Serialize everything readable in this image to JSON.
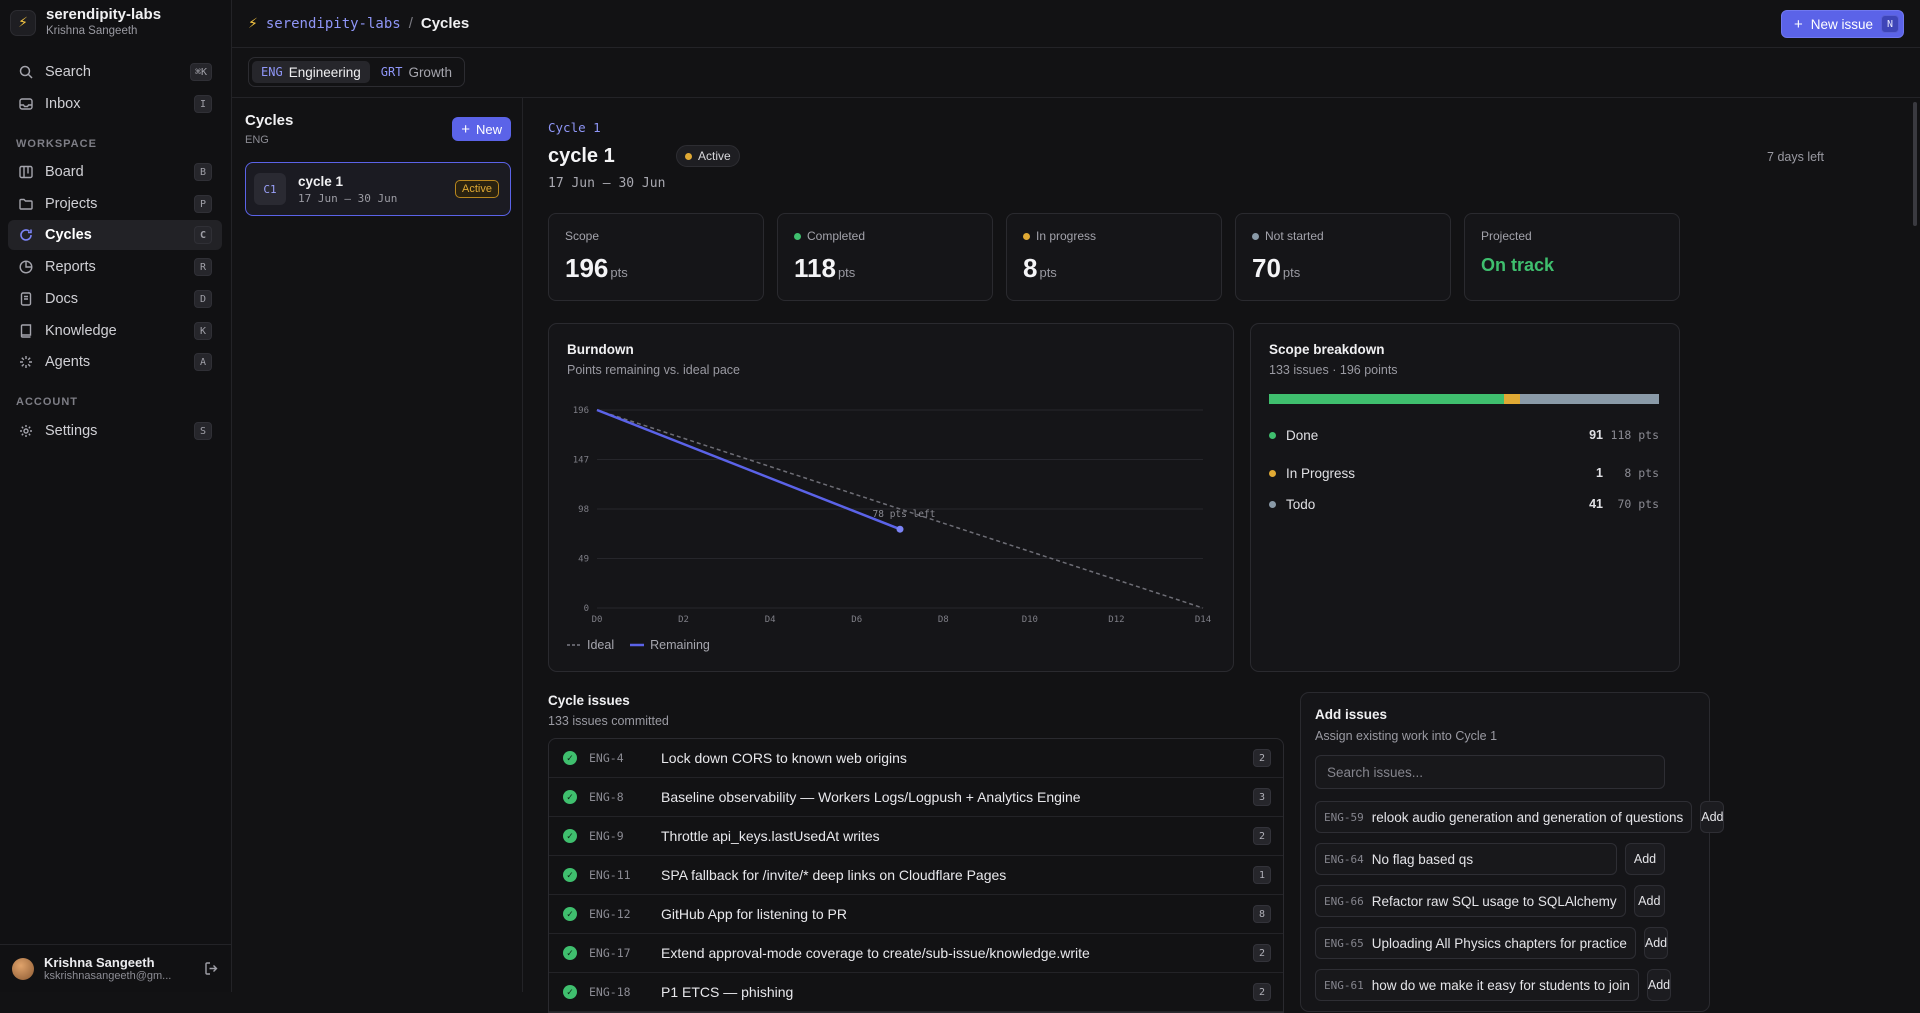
{
  "workspace": {
    "name": "serendipity-labs",
    "user": "Krishna Sangeeth"
  },
  "nav": {
    "search": {
      "label": "Search",
      "kbd": "⌘K"
    },
    "inbox": {
      "label": "Inbox",
      "kbd": "I"
    },
    "workspace_heading": "WORKSPACE",
    "items": [
      {
        "label": "Board",
        "kbd": "B",
        "icon": "board-icon"
      },
      {
        "label": "Projects",
        "kbd": "P",
        "icon": "folder-icon"
      },
      {
        "label": "Cycles",
        "kbd": "C",
        "icon": "cycle-icon",
        "active": true
      },
      {
        "label": "Reports",
        "kbd": "R",
        "icon": "reports-icon"
      },
      {
        "label": "Docs",
        "kbd": "D",
        "icon": "docs-icon"
      },
      {
        "label": "Knowledge",
        "kbd": "K",
        "icon": "book-icon"
      },
      {
        "label": "Agents",
        "kbd": "A",
        "icon": "sparkle-icon"
      }
    ],
    "account_heading": "ACCOUNT",
    "settings": {
      "label": "Settings",
      "kbd": "S"
    }
  },
  "footer_user": {
    "name": "Krishna Sangeeth",
    "email": "kskrishnasangeeth@gm..."
  },
  "breadcrumb": {
    "org": "serendipity-labs",
    "sep": "/",
    "current": "Cycles"
  },
  "header": {
    "new_issue_label": "New issue",
    "new_issue_kbd": "N"
  },
  "teams": [
    {
      "code": "ENG",
      "name": "Engineering",
      "selected": true
    },
    {
      "code": "GRT",
      "name": "Growth",
      "selected": false
    }
  ],
  "cycle_list": {
    "title": "Cycles",
    "team": "ENG",
    "new_label": "New",
    "items": [
      {
        "chip": "C1",
        "name": "cycle 1",
        "dates": "17 Jun – 30 Jun",
        "status": "Active"
      }
    ]
  },
  "cycle": {
    "eyebrow": "Cycle 1",
    "title": "cycle 1",
    "status": "Active",
    "dates": "17 Jun – 30 Jun",
    "days_left": "7 days left"
  },
  "colors": {
    "accent": "#5b63e8",
    "done": "#3fbf6e",
    "in_progress": "#e0a934",
    "todo": "#8a9aa8",
    "scope_ideal": "#6e6e76"
  },
  "stats": [
    {
      "label": "Scope",
      "value": "196",
      "unit": "pts",
      "dot": ""
    },
    {
      "label": "Completed",
      "value": "118",
      "unit": "pts",
      "dot": "#3fbf6e"
    },
    {
      "label": "In progress",
      "value": "8",
      "unit": "pts",
      "dot": "#e0a934"
    },
    {
      "label": "Not started",
      "value": "70",
      "unit": "pts",
      "dot": "#8a9aa8"
    },
    {
      "label": "Projected",
      "value": "On track",
      "unit": "",
      "dot": ""
    }
  ],
  "burndown": {
    "title": "Burndown",
    "subtitle": "Points remaining vs. ideal pace",
    "legend_ideal": "Ideal",
    "legend_remaining": "Remaining",
    "annotation": "78 pts left"
  },
  "chart_data": {
    "type": "line",
    "x": [
      "D0",
      "D1",
      "D2",
      "D3",
      "D4",
      "D5",
      "D6",
      "D7",
      "D8",
      "D9",
      "D10",
      "D11",
      "D12",
      "D13",
      "D14"
    ],
    "xticks": [
      "D0",
      "D2",
      "D4",
      "D6",
      "D8",
      "D10",
      "D12",
      "D14"
    ],
    "yticks": [
      0,
      49,
      98,
      147,
      196
    ],
    "ylim": [
      0,
      196
    ],
    "series": [
      {
        "name": "Ideal",
        "style": "dashed",
        "color": "#6e6e76",
        "points": [
          [
            0,
            196
          ],
          [
            14,
            0
          ]
        ]
      },
      {
        "name": "Remaining",
        "style": "solid",
        "color": "#5b63e8",
        "points": [
          [
            0,
            196
          ],
          [
            7,
            78
          ]
        ]
      }
    ],
    "grid": true
  },
  "scope": {
    "title": "Scope breakdown",
    "subtitle": "133 issues · 196 points",
    "rows": [
      {
        "name": "Done",
        "count": "91",
        "pts": "118 pts",
        "color": "#3fbf6e",
        "points": 118
      },
      {
        "name": "In Progress",
        "count": "1",
        "pts": "8 pts",
        "color": "#e0a934",
        "points": 8
      },
      {
        "name": "Todo",
        "count": "41",
        "pts": "70 pts",
        "color": "#8a9aa8",
        "points": 70
      }
    ]
  },
  "cycle_issues": {
    "title": "Cycle issues",
    "subtitle": "133 issues committed",
    "rows": [
      {
        "id": "ENG-4",
        "title": "Lock down CORS to known web origins",
        "est": "2"
      },
      {
        "id": "ENG-8",
        "title": "Baseline observability — Workers Logs/Logpush + Analytics Engine",
        "est": "3"
      },
      {
        "id": "ENG-9",
        "title": "Throttle api_keys.lastUsedAt writes",
        "est": "2"
      },
      {
        "id": "ENG-11",
        "title": "SPA fallback for /invite/* deep links on Cloudflare Pages",
        "est": "1"
      },
      {
        "id": "ENG-12",
        "title": "GitHub App for listening to PR",
        "est": "8"
      },
      {
        "id": "ENG-17",
        "title": "Extend approval-mode coverage to create/sub-issue/knowledge.write",
        "est": "2"
      },
      {
        "id": "ENG-18",
        "title": "P1 ETCS — phishing",
        "est": "2"
      }
    ]
  },
  "add_issues": {
    "title": "Add issues",
    "subtitle": "Assign existing work into Cycle 1",
    "search_placeholder": "Search issues...",
    "add_label": "Add",
    "items": [
      {
        "id": "ENG-59",
        "title": "relook audio generation and generation of questions"
      },
      {
        "id": "ENG-64",
        "title": "No flag based qs"
      },
      {
        "id": "ENG-66",
        "title": "Refactor raw SQL usage to SQLAlchemy"
      },
      {
        "id": "ENG-65",
        "title": "Uploading All Physics chapters for practice"
      },
      {
        "id": "ENG-61",
        "title": "how do we make it easy for students to join"
      }
    ]
  }
}
